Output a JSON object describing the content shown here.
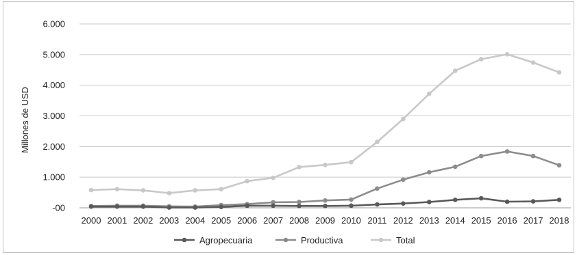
{
  "chart_data": {
    "type": "line",
    "title": "",
    "xlabel": "",
    "ylabel": "Millones de USD",
    "ylim": [
      0,
      6000
    ],
    "ytick_values": [
      0,
      1000,
      2000,
      3000,
      4000,
      5000,
      6000
    ],
    "ytick_labels": [
      "-00",
      "1.000",
      "2.000",
      "3.000",
      "4.000",
      "5.000",
      "6.000"
    ],
    "grid": true,
    "legend_position": "bottom",
    "categories": [
      "2000",
      "2001",
      "2002",
      "2003",
      "2004",
      "2005",
      "2006",
      "2007",
      "2008",
      "2009",
      "2010",
      "2011",
      "2012",
      "2013",
      "2014",
      "2015",
      "2016",
      "2017",
      "2018"
    ],
    "series": [
      {
        "name": "Agropecuaria",
        "color": "#595959",
        "values": [
          40,
          40,
          40,
          10,
          10,
          30,
          70,
          70,
          60,
          60,
          70,
          110,
          140,
          190,
          260,
          310,
          200,
          210,
          260
        ]
      },
      {
        "name": "Productiva",
        "color": "#8c8c8c",
        "values": [
          60,
          70,
          70,
          50,
          40,
          90,
          120,
          180,
          190,
          240,
          270,
          630,
          920,
          1160,
          1340,
          1690,
          1840,
          1690,
          1390
        ]
      },
      {
        "name": "Total",
        "color": "#c8c8c8",
        "values": [
          580,
          610,
          570,
          480,
          570,
          610,
          870,
          980,
          1330,
          1400,
          1490,
          2150,
          2900,
          3720,
          4470,
          4850,
          5010,
          4740,
          4420
        ]
      }
    ]
  }
}
